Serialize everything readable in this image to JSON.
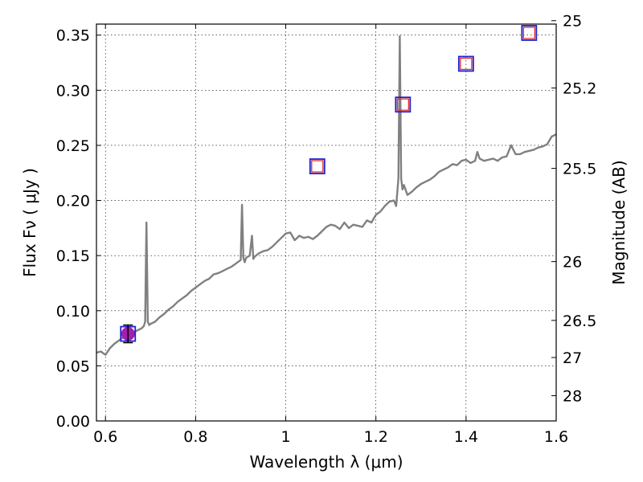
{
  "chart_data": {
    "type": "line",
    "xlabel": "Wavelength  λ (μm)",
    "ylabel": "Flux  Fν  ( μJy )",
    "ylabel_right": "Magnitude (AB)",
    "xlim": [
      0.58,
      1.6
    ],
    "ylim": [
      0.0,
      0.36
    ],
    "x_ticks": [
      0.6,
      0.8,
      1.0,
      1.2,
      1.4,
      1.6
    ],
    "x_tick_labels": [
      "0.6",
      "0.8",
      "1",
      "1.2",
      "1.4",
      "1.6"
    ],
    "y_ticks": [
      0.0,
      0.05,
      0.1,
      0.15,
      0.2,
      0.25,
      0.3,
      0.35
    ],
    "y_tick_labels": [
      "0.00",
      "0.05",
      "0.10",
      "0.15",
      "0.20",
      "0.25",
      "0.30",
      "0.35"
    ],
    "right_ticks": [
      {
        "label": "25",
        "mag": 25.0
      },
      {
        "label": "25.2",
        "mag": 25.2
      },
      {
        "label": "25.5",
        "mag": 25.5
      },
      {
        "label": "26",
        "mag": 26.0
      },
      {
        "label": "26.5",
        "mag": 26.5
      },
      {
        "label": "27",
        "mag": 27.0
      },
      {
        "label": "28",
        "mag": 28.0
      }
    ],
    "grid": true,
    "colors": {
      "spectrum": "#808080",
      "model_squares": "#e03030",
      "observed_squares": "#2020d0",
      "measurement": "#a020b0",
      "error_bar": "#000000"
    },
    "series": [
      {
        "type": "line",
        "x": [
          0.58,
          0.59,
          0.6,
          0.61,
          0.62,
          0.63,
          0.64,
          0.65,
          0.66,
          0.67,
          0.68,
          0.685,
          0.688,
          0.691,
          0.694,
          0.697,
          0.7,
          0.71,
          0.72,
          0.73,
          0.74,
          0.75,
          0.76,
          0.77,
          0.78,
          0.79,
          0.8,
          0.81,
          0.82,
          0.83,
          0.84,
          0.85,
          0.86,
          0.87,
          0.88,
          0.89,
          0.9,
          0.903,
          0.906,
          0.909,
          0.912,
          0.92,
          0.925,
          0.928,
          0.931,
          0.94,
          0.95,
          0.96,
          0.97,
          0.98,
          0.99,
          1.0,
          1.01,
          1.02,
          1.03,
          1.04,
          1.05,
          1.06,
          1.07,
          1.08,
          1.09,
          1.1,
          1.11,
          1.12,
          1.13,
          1.14,
          1.15,
          1.16,
          1.17,
          1.18,
          1.19,
          1.2,
          1.21,
          1.22,
          1.23,
          1.24,
          1.245,
          1.25,
          1.253,
          1.256,
          1.259,
          1.262,
          1.27,
          1.28,
          1.29,
          1.3,
          1.31,
          1.32,
          1.33,
          1.34,
          1.35,
          1.36,
          1.37,
          1.38,
          1.39,
          1.4,
          1.41,
          1.42,
          1.425,
          1.43,
          1.44,
          1.45,
          1.46,
          1.47,
          1.48,
          1.49,
          1.5,
          1.51,
          1.52,
          1.53,
          1.54,
          1.55,
          1.56,
          1.57,
          1.58,
          1.59,
          1.6
        ],
        "y": [
          0.062,
          0.063,
          0.06,
          0.066,
          0.07,
          0.073,
          0.076,
          0.078,
          0.08,
          0.082,
          0.084,
          0.086,
          0.09,
          0.18,
          0.09,
          0.087,
          0.088,
          0.09,
          0.094,
          0.097,
          0.101,
          0.104,
          0.108,
          0.111,
          0.114,
          0.118,
          0.121,
          0.124,
          0.127,
          0.129,
          0.133,
          0.134,
          0.136,
          0.138,
          0.14,
          0.143,
          0.146,
          0.196,
          0.148,
          0.144,
          0.148,
          0.15,
          0.168,
          0.147,
          0.149,
          0.152,
          0.154,
          0.155,
          0.158,
          0.162,
          0.166,
          0.17,
          0.171,
          0.164,
          0.168,
          0.166,
          0.167,
          0.165,
          0.168,
          0.172,
          0.176,
          0.178,
          0.177,
          0.174,
          0.18,
          0.175,
          0.178,
          0.177,
          0.176,
          0.182,
          0.18,
          0.187,
          0.19,
          0.195,
          0.199,
          0.2,
          0.195,
          0.22,
          0.349,
          0.22,
          0.21,
          0.214,
          0.205,
          0.208,
          0.212,
          0.215,
          0.217,
          0.219,
          0.222,
          0.226,
          0.228,
          0.23,
          0.233,
          0.232,
          0.236,
          0.237,
          0.234,
          0.236,
          0.244,
          0.238,
          0.236,
          0.237,
          0.238,
          0.236,
          0.239,
          0.24,
          0.25,
          0.242,
          0.242,
          0.244,
          0.245,
          0.246,
          0.248,
          0.249,
          0.251,
          0.258,
          0.26
        ]
      },
      {
        "type": "scatter",
        "x": [
          1.07,
          1.26,
          1.4,
          1.54
        ],
        "y": [
          0.231,
          0.287,
          0.324,
          0.352
        ]
      },
      {
        "type": "scatter",
        "x": [
          0.65
        ],
        "y": [
          0.079
        ],
        "yerr": [
          0.008
        ]
      }
    ]
  }
}
